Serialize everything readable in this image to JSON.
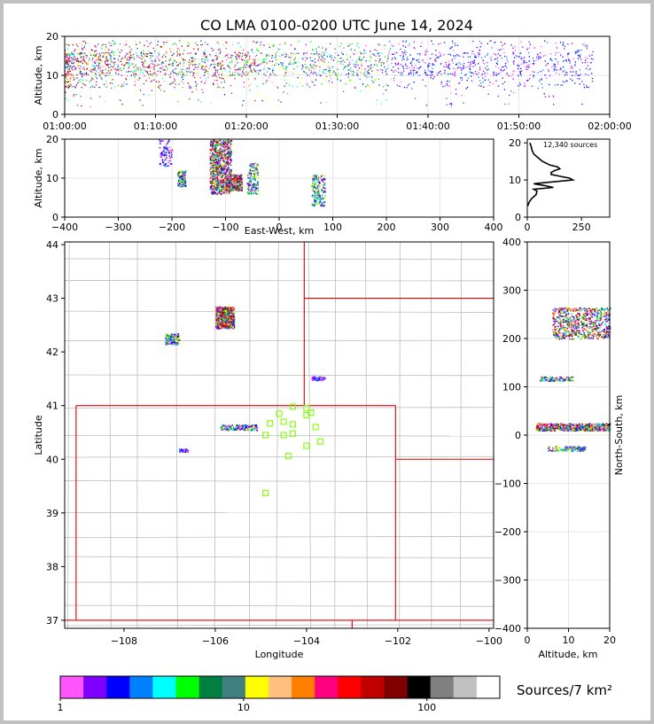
{
  "figure": {
    "title": "CO LMA 0100-0200 UTC June 14, 2024",
    "source_count_label": "12,340 sources",
    "colorbar_label": "Sources/7 km²"
  },
  "colors": {
    "boundary_state": "#e00000",
    "boundary_county": "#bdbdbd",
    "station_marker": "#80ff00",
    "grid": "#e6e6e6"
  },
  "chart_data": [
    {
      "id": "time_height",
      "type": "scatter",
      "xlabel": "",
      "ylabel": "Altitude, km",
      "x_ticks": [
        "01:00:00",
        "01:10:00",
        "01:20:00",
        "01:30:00",
        "01:40:00",
        "01:50:00",
        "02:00:00"
      ],
      "xlim": [
        "01:00:00",
        "02:00:00"
      ],
      "ylim": [
        0,
        20
      ],
      "y_ticks": [
        0,
        10,
        20
      ],
      "grid": true,
      "dense_band_altitude_km": [
        7,
        19
      ],
      "peak_altitude_km": 13
    },
    {
      "id": "ew_height",
      "type": "heatmap",
      "xlabel": "East-West, km",
      "ylabel": "Altitude, km",
      "xlim": [
        -400,
        400
      ],
      "x_ticks": [
        -400,
        -300,
        -200,
        -100,
        0,
        100,
        200,
        300,
        400
      ],
      "ylim": [
        0,
        20
      ],
      "y_ticks": [
        0,
        10,
        20
      ],
      "grid": true,
      "clusters": [
        {
          "x": [
            -225,
            -200
          ],
          "z": [
            13,
            20
          ],
          "level": "low"
        },
        {
          "x": [
            -190,
            -175
          ],
          "z": [
            8,
            12
          ],
          "level": "medium"
        },
        {
          "x": [
            -130,
            -90
          ],
          "z": [
            6,
            20
          ],
          "level": "high"
        },
        {
          "x": [
            -100,
            -70
          ],
          "z": [
            7,
            11
          ],
          "level": "high"
        },
        {
          "x": [
            -60,
            -40
          ],
          "z": [
            6,
            14
          ],
          "level": "medium"
        },
        {
          "x": [
            60,
            85
          ],
          "z": [
            3,
            11
          ],
          "level": "medium"
        }
      ]
    },
    {
      "id": "altitude_histogram",
      "type": "line",
      "xlabel": "",
      "ylabel": "",
      "xlim": [
        0,
        380
      ],
      "x_ticks": [
        0,
        250
      ],
      "ylim": [
        0,
        21
      ],
      "y_ticks": [
        0,
        10,
        20
      ],
      "x": [
        2,
        8,
        20,
        40,
        45,
        30,
        120,
        80,
        30,
        120,
        210,
        195,
        150,
        110,
        110,
        125,
        150,
        140,
        105,
        70,
        50,
        30,
        22,
        18,
        12
      ],
      "y": [
        3,
        4,
        5,
        6,
        7,
        7.5,
        8,
        8.5,
        9,
        9.5,
        10,
        10.5,
        11,
        11.5,
        12,
        12.5,
        13,
        13.5,
        14,
        15,
        16,
        17,
        18,
        19,
        20
      ]
    },
    {
      "id": "plan_view",
      "type": "heatmap",
      "xlabel": "Longitude",
      "ylabel": "Latitude",
      "xlim": [
        -109.3,
        -99.9
      ],
      "x_ticks": [
        -108,
        -106,
        -104,
        -102,
        -100
      ],
      "ylim": [
        36.85,
        44.05
      ],
      "y_ticks": [
        37,
        38,
        39,
        40,
        41,
        42,
        43,
        44
      ],
      "clusters": [
        {
          "lon": [
            -106.0,
            -105.6
          ],
          "lat": [
            42.45,
            42.85
          ],
          "level": "high"
        },
        {
          "lon": [
            -107.1,
            -106.8
          ],
          "lat": [
            42.15,
            42.35
          ],
          "level": "medium"
        },
        {
          "lon": [
            -105.9,
            -105.1
          ],
          "lat": [
            40.55,
            40.65
          ],
          "level": "medium"
        },
        {
          "lon": [
            -103.9,
            -103.6
          ],
          "lat": [
            41.48,
            41.55
          ],
          "level": "low"
        },
        {
          "lon": [
            -106.8,
            -106.6
          ],
          "lat": [
            40.15,
            40.2
          ],
          "level": "low"
        }
      ],
      "stations": [
        {
          "lon": -104.3,
          "lat": 40.98
        },
        {
          "lon": -104.0,
          "lat": 40.95
        },
        {
          "lon": -104.6,
          "lat": 40.85
        },
        {
          "lon": -103.9,
          "lat": 40.87
        },
        {
          "lon": -104.0,
          "lat": 40.82
        },
        {
          "lon": -104.5,
          "lat": 40.7
        },
        {
          "lon": -104.8,
          "lat": 40.67
        },
        {
          "lon": -104.3,
          "lat": 40.65
        },
        {
          "lon": -103.8,
          "lat": 40.6
        },
        {
          "lon": -104.9,
          "lat": 40.45
        },
        {
          "lon": -104.5,
          "lat": 40.45
        },
        {
          "lon": -104.3,
          "lat": 40.48
        },
        {
          "lon": -103.7,
          "lat": 40.33
        },
        {
          "lon": -104.0,
          "lat": 40.25
        },
        {
          "lon": -104.4,
          "lat": 40.06
        },
        {
          "lon": -104.9,
          "lat": 39.37
        }
      ]
    },
    {
      "id": "ns_height",
      "type": "heatmap",
      "xlabel": "Altitude, km",
      "ylabel": "North-South, km",
      "xlim": [
        0,
        20
      ],
      "x_ticks": [
        0,
        10,
        20
      ],
      "ylim": [
        -400,
        400
      ],
      "y_ticks": [
        -400,
        -300,
        -200,
        -100,
        0,
        100,
        200,
        300,
        400
      ],
      "clusters": [
        {
          "z": [
            6,
            20
          ],
          "y": [
            200,
            265
          ],
          "level": "high"
        },
        {
          "z": [
            3,
            11
          ],
          "y": [
            113,
            122
          ],
          "level": "medium"
        },
        {
          "z": [
            2,
            20
          ],
          "y": [
            10,
            25
          ],
          "level": "high"
        },
        {
          "z": [
            5,
            14
          ],
          "y": [
            -32,
            -22
          ],
          "level": "medium"
        }
      ]
    },
    {
      "id": "colorbar",
      "type": "heatmap",
      "scale": "log",
      "range": [
        1,
        100
      ],
      "ticks": [
        1,
        10,
        100
      ],
      "label": "Sources/7 km²",
      "colors": [
        "#ff55ff",
        "#8000ff",
        "#0000ff",
        "#0080ff",
        "#00ffff",
        "#00ff00",
        "#008040",
        "#408080",
        "#ffff00",
        "#ffc080",
        "#ff8000",
        "#ff0080",
        "#ff0000",
        "#c00000",
        "#800000",
        "#000000",
        "#808080",
        "#c0c0c0",
        "#ffffff"
      ]
    }
  ]
}
